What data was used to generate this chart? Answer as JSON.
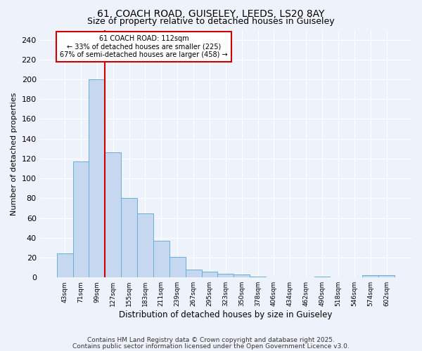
{
  "title1": "61, COACH ROAD, GUISELEY, LEEDS, LS20 8AY",
  "title2": "Size of property relative to detached houses in Guiseley",
  "xlabel": "Distribution of detached houses by size in Guiseley",
  "ylabel": "Number of detached properties",
  "categories": [
    "43sqm",
    "71sqm",
    "99sqm",
    "127sqm",
    "155sqm",
    "183sqm",
    "211sqm",
    "239sqm",
    "267sqm",
    "295sqm",
    "323sqm",
    "350sqm",
    "378sqm",
    "406sqm",
    "434sqm",
    "462sqm",
    "490sqm",
    "518sqm",
    "546sqm",
    "574sqm",
    "602sqm"
  ],
  "values": [
    24,
    117,
    200,
    126,
    80,
    65,
    37,
    21,
    8,
    6,
    4,
    3,
    1,
    0,
    0,
    0,
    1,
    0,
    0,
    2,
    2
  ],
  "bar_color": "#c5d8f0",
  "bar_edge_color": "#6baed6",
  "red_line_index": 2,
  "annotation_text": "61 COACH ROAD: 112sqm\n← 33% of detached houses are smaller (225)\n67% of semi-detached houses are larger (458) →",
  "annotation_box_color": "#ffffff",
  "annotation_box_edge_color": "#cc0000",
  "ylim": [
    0,
    250
  ],
  "yticks": [
    0,
    20,
    40,
    60,
    80,
    100,
    120,
    140,
    160,
    180,
    200,
    220,
    240
  ],
  "background_color": "#eef2fa",
  "grid_color": "#ffffff",
  "footer1": "Contains HM Land Registry data © Crown copyright and database right 2025.",
  "footer2": "Contains public sector information licensed under the Open Government Licence v3.0."
}
